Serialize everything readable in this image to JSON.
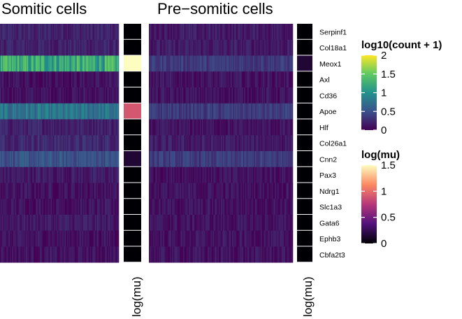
{
  "chart_data": {
    "type": "heatmap",
    "panels": [
      {
        "title": "Somitic cells",
        "mu_label": "log(mu)",
        "log_mu": [
          0,
          0,
          1.5,
          0,
          0,
          0.9,
          0,
          0,
          0.15,
          0,
          0,
          0,
          0,
          0,
          0
        ],
        "typical_log10_count": [
          0.2,
          0.2,
          1.2,
          0.1,
          0.1,
          0.75,
          0.2,
          0.25,
          0.5,
          0.15,
          0.1,
          0.1,
          0.15,
          0.1,
          0.1
        ]
      },
      {
        "title": "Pre−somitic cells",
        "mu_label": "log(mu)",
        "log_mu": [
          0,
          0,
          0.15,
          0,
          0,
          0,
          0,
          0,
          0,
          0,
          0,
          0,
          0,
          0,
          0
        ],
        "typical_log10_count": [
          0.15,
          0.15,
          0.35,
          0.1,
          0.1,
          0.35,
          0.1,
          0.15,
          0.35,
          0.1,
          0.1,
          0.1,
          0.1,
          0.1,
          0.1
        ]
      }
    ],
    "genes": [
      "Serpinf1",
      "Col18a1",
      "Meox1",
      "Axl",
      "Cd36",
      "Apoe",
      "Hlf",
      "Col26a1",
      "Cnn2",
      "Pax3",
      "Ndrg1",
      "Slc1a3",
      "Gata6",
      "Ephb3",
      "Cbfa2t3"
    ],
    "legends": [
      {
        "title": "log10(count + 1)",
        "scale": "viridis",
        "range": [
          0,
          2
        ],
        "ticks": [
          "2",
          "1.5",
          "1",
          "0.5",
          "0"
        ],
        "tick_values": [
          2,
          1.5,
          1,
          0.5,
          0
        ]
      },
      {
        "title": "log(mu)",
        "scale": "magma",
        "range": [
          0,
          1.5
        ],
        "ticks": [
          "1.5",
          "1",
          "0.5",
          "0"
        ],
        "tick_values": [
          1.5,
          1,
          0.5,
          0
        ]
      }
    ]
  }
}
